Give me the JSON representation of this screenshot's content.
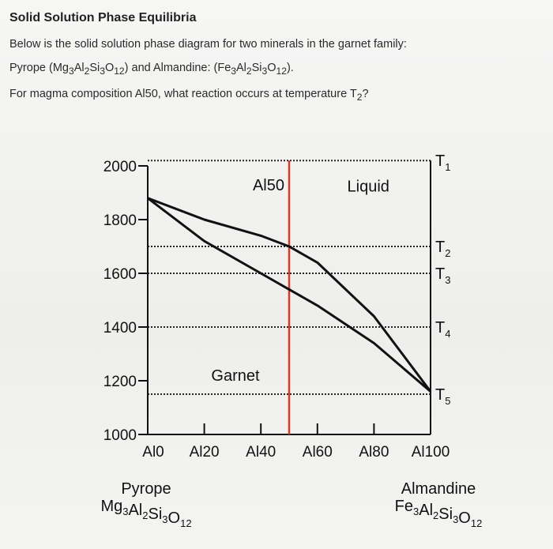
{
  "header": {
    "title": "Solid Solution Phase Equilibria",
    "line1": "Below is the solid solution phase diagram for two minerals in the garnet family:",
    "line2_prefix": "Pyrope (",
    "pyrope_formula": "Mg3Al2Si3O12",
    "line2_mid": ") and Almandine: (",
    "almandine_formula": "Fe3Al2Si3O12",
    "line2_suffix": ").",
    "question_prefix": "For magma composition Al50, what reaction occurs at temperature ",
    "question_t": "T",
    "question_sub": "2",
    "question_suffix": "?"
  },
  "chart_data": {
    "type": "line",
    "x": [
      0,
      20,
      40,
      60,
      80,
      100
    ],
    "xticklabels": [
      "Al0",
      "Al20",
      "Al40",
      "Al60",
      "Al80",
      "Al100"
    ],
    "ylim": [
      1000,
      2000
    ],
    "yticks": [
      1000,
      1200,
      1400,
      1600,
      1800,
      2000
    ],
    "xlim": [
      0,
      100
    ],
    "liquidus": {
      "x": [
        0,
        20,
        40,
        50,
        60,
        80,
        100
      ],
      "y": [
        1880,
        1800,
        1740,
        1700,
        1640,
        1440,
        1160
      ]
    },
    "solidus": {
      "x": [
        0,
        20,
        40,
        50,
        60,
        80,
        100
      ],
      "y": [
        1880,
        1720,
        1600,
        1540,
        1480,
        1340,
        1160
      ]
    },
    "composition_line": {
      "label": "Al50",
      "x": 50,
      "color": "#d63a2e"
    },
    "temperature_lines": [
      {
        "name": "T",
        "sub": "1",
        "y": 2020
      },
      {
        "name": "T",
        "sub": "2",
        "y": 1700
      },
      {
        "name": "T",
        "sub": "3",
        "y": 1600
      },
      {
        "name": "T",
        "sub": "4",
        "y": 1400
      },
      {
        "name": "T",
        "sub": "5",
        "y": 1150
      }
    ],
    "regions": {
      "liquid": "Liquid",
      "solid": "Garnet"
    },
    "end_members": {
      "left_name": "Pyrope",
      "left_formula": "Mg3Al2Si3O12",
      "right_name": "Almandine",
      "right_formula": "Fe3Al2Si3O12"
    }
  }
}
